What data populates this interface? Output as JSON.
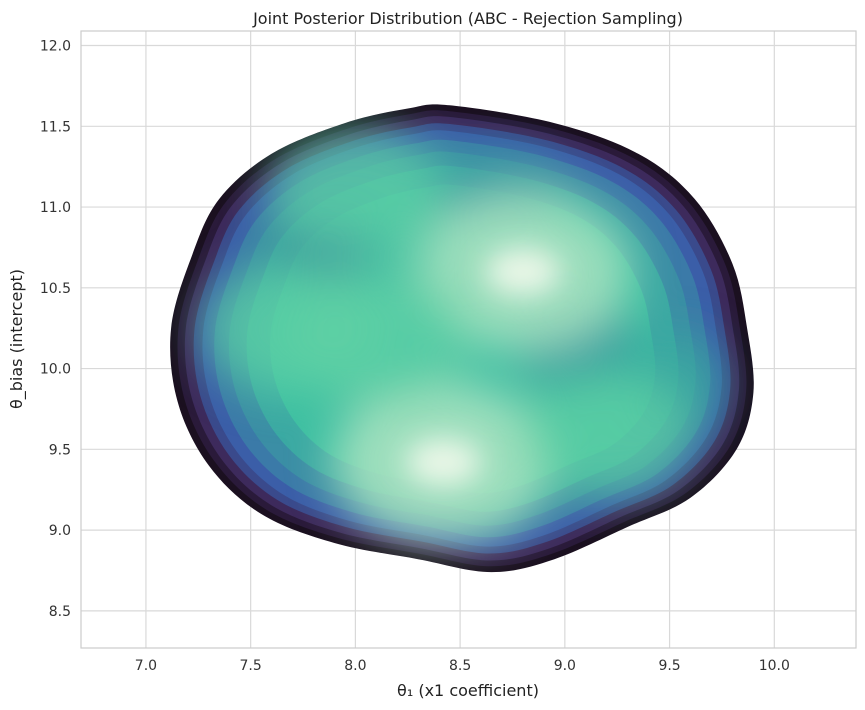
{
  "chart_data": {
    "type": "heatmap",
    "subtype": "kde-density",
    "title": "Joint Posterior Distribution (ABC - Rejection Sampling)",
    "xlabel": "θ₁ (x1 coefficient)",
    "ylabel": "θ_bias (intercept)",
    "xlim": [
      6.69,
      10.39
    ],
    "ylim": [
      8.27,
      12.09
    ],
    "x_ticks": [
      "7.0",
      "7.5",
      "8.0",
      "8.5",
      "9.0",
      "9.5",
      "10.0"
    ],
    "y_ticks": [
      "8.5",
      "9.0",
      "9.5",
      "10.0",
      "10.5",
      "11.0",
      "11.5",
      "12.0"
    ],
    "grid": true,
    "colormap": [
      "#1b1020",
      "#3d2a5c",
      "#3b5ea8",
      "#3b8ea5",
      "#3dbfa2",
      "#5fd0a5",
      "#a8e2c0",
      "#eef8ea"
    ],
    "support_outline": [
      [
        8.45,
        11.63
      ],
      [
        8.95,
        11.52
      ],
      [
        9.35,
        11.33
      ],
      [
        9.62,
        11.05
      ],
      [
        9.8,
        10.65
      ],
      [
        9.87,
        10.25
      ],
      [
        9.9,
        9.85
      ],
      [
        9.82,
        9.5
      ],
      [
        9.6,
        9.2
      ],
      [
        9.3,
        9.02
      ],
      [
        8.95,
        8.82
      ],
      [
        8.65,
        8.74
      ],
      [
        8.3,
        8.82
      ],
      [
        7.9,
        8.92
      ],
      [
        7.55,
        9.1
      ],
      [
        7.3,
        9.4
      ],
      [
        7.15,
        9.8
      ],
      [
        7.12,
        10.25
      ],
      [
        7.22,
        10.7
      ],
      [
        7.35,
        11.05
      ],
      [
        7.6,
        11.33
      ],
      [
        7.95,
        11.52
      ],
      [
        8.25,
        11.61
      ]
    ],
    "density_peaks": [
      {
        "x": 8.42,
        "y": 9.42,
        "weight": 1.0
      },
      {
        "x": 8.8,
        "y": 10.6,
        "weight": 0.95
      },
      {
        "x": 8.1,
        "y": 10.2,
        "weight": 0.6
      },
      {
        "x": 7.7,
        "y": 10.25,
        "weight": 0.55
      },
      {
        "x": 8.0,
        "y": 11.1,
        "weight": 0.5
      },
      {
        "x": 9.2,
        "y": 9.6,
        "weight": 0.45
      }
    ]
  }
}
